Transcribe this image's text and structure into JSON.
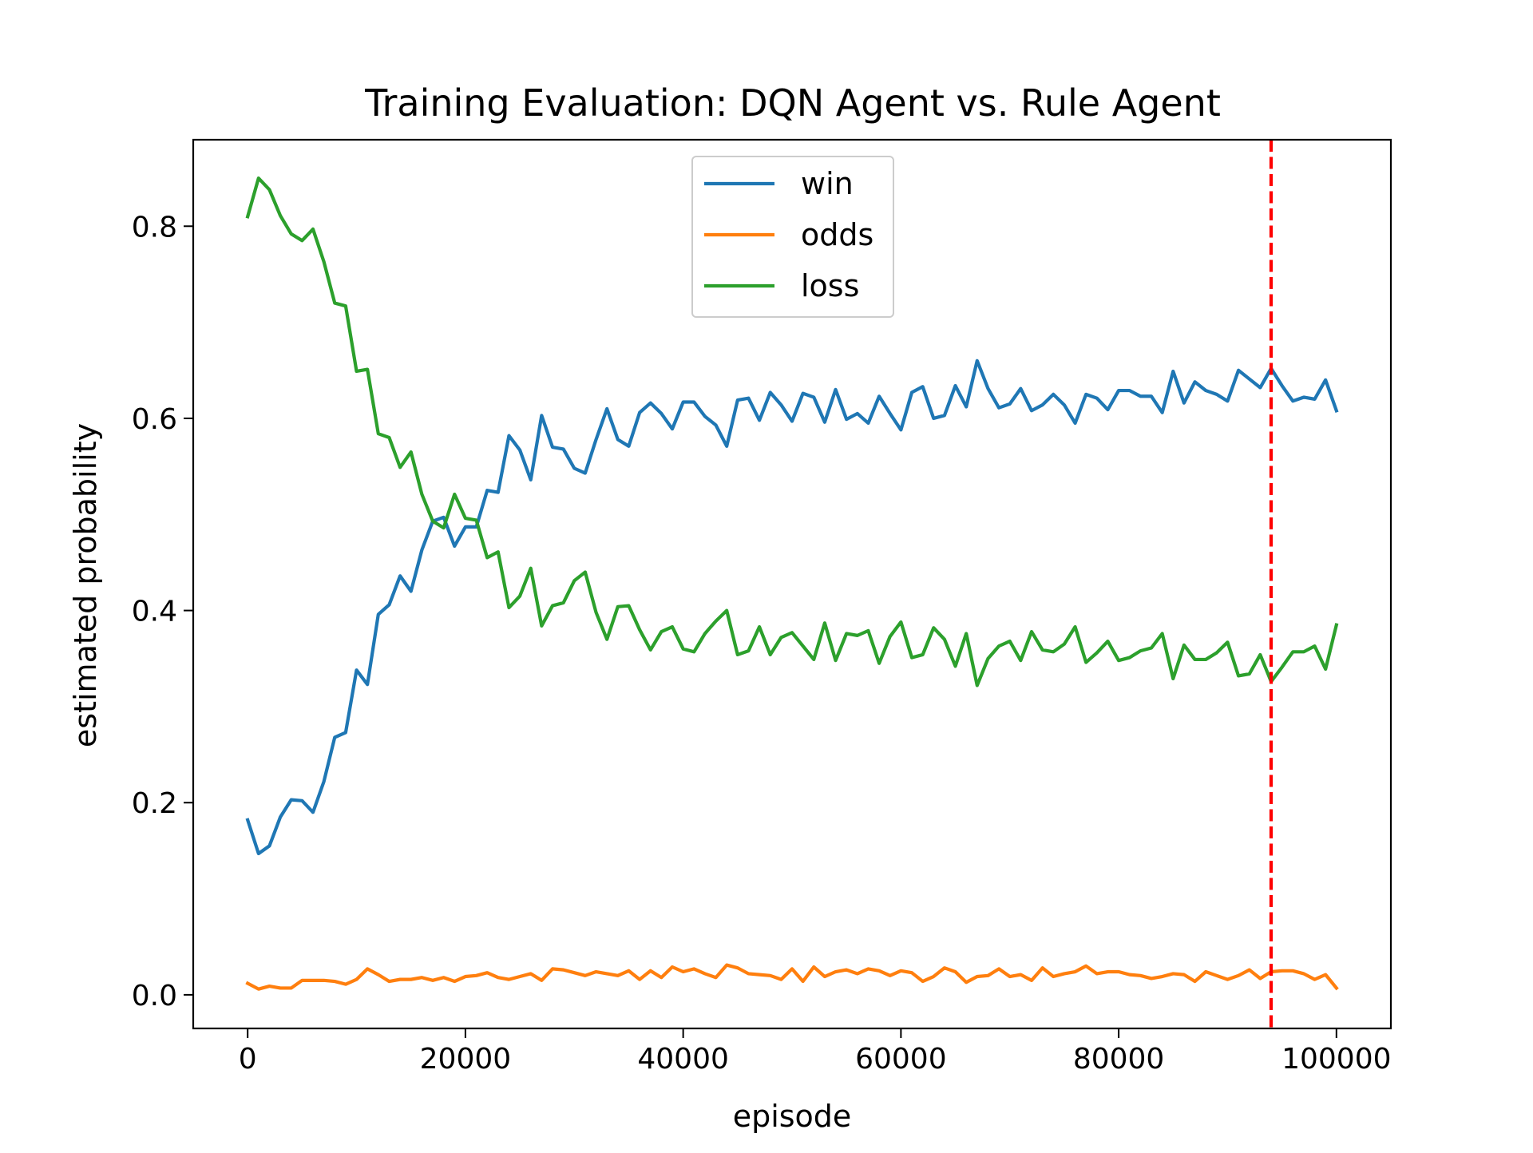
{
  "chart_data": {
    "type": "line",
    "title": "Training Evaluation: DQN Agent vs. Rule Agent",
    "xlabel": "episode",
    "ylabel": "estimated probability",
    "xlim": [
      -5000,
      105000
    ],
    "ylim": [
      -0.035,
      0.89
    ],
    "xticks": [
      0,
      20000,
      40000,
      60000,
      80000,
      100000
    ],
    "xtick_labels": [
      "0",
      "20000",
      "40000",
      "60000",
      "80000",
      "100000"
    ],
    "yticks": [
      0.0,
      0.2,
      0.4,
      0.6,
      0.8
    ],
    "ytick_labels": [
      "0.0",
      "0.2",
      "0.4",
      "0.6",
      "0.8"
    ],
    "grid": false,
    "legend_position": "upper-center",
    "x": [
      0,
      1000,
      2000,
      3000,
      4000,
      5000,
      6000,
      7000,
      8000,
      9000,
      10000,
      11000,
      12000,
      13000,
      14000,
      15000,
      16000,
      17000,
      18000,
      19000,
      20000,
      21000,
      22000,
      23000,
      24000,
      25000,
      26000,
      27000,
      28000,
      29000,
      30000,
      31000,
      32000,
      33000,
      34000,
      35000,
      36000,
      37000,
      38000,
      39000,
      40000,
      41000,
      42000,
      43000,
      44000,
      45000,
      46000,
      47000,
      48000,
      49000,
      50000,
      51000,
      52000,
      53000,
      54000,
      55000,
      56000,
      57000,
      58000,
      59000,
      60000,
      61000,
      62000,
      63000,
      64000,
      65000,
      66000,
      67000,
      68000,
      69000,
      70000,
      71000,
      72000,
      73000,
      74000,
      75000,
      76000,
      77000,
      78000,
      79000,
      80000,
      81000,
      82000,
      83000,
      84000,
      85000,
      86000,
      87000,
      88000,
      89000,
      90000,
      91000,
      92000,
      93000,
      94000,
      95000,
      96000,
      97000,
      98000,
      99000,
      100000
    ],
    "series": [
      {
        "name": "win",
        "color": "#1f77b4",
        "values": [
          0.182,
          0.147,
          0.155,
          0.185,
          0.203,
          0.202,
          0.19,
          0.222,
          0.268,
          0.273,
          0.338,
          0.323,
          0.396,
          0.406,
          0.436,
          0.42,
          0.463,
          0.493,
          0.497,
          0.467,
          0.487,
          0.487,
          0.525,
          0.523,
          0.582,
          0.567,
          0.536,
          0.603,
          0.57,
          0.568,
          0.548,
          0.543,
          0.578,
          0.61,
          0.578,
          0.571,
          0.606,
          0.616,
          0.605,
          0.589,
          0.617,
          0.617,
          0.602,
          0.593,
          0.571,
          0.619,
          0.621,
          0.598,
          0.627,
          0.614,
          0.597,
          0.626,
          0.622,
          0.596,
          0.63,
          0.599,
          0.605,
          0.595,
          0.623,
          0.605,
          0.588,
          0.627,
          0.633,
          0.6,
          0.603,
          0.634,
          0.612,
          0.66,
          0.631,
          0.611,
          0.615,
          0.631,
          0.608,
          0.614,
          0.625,
          0.614,
          0.595,
          0.625,
          0.621,
          0.609,
          0.629,
          0.629,
          0.623,
          0.623,
          0.606,
          0.649,
          0.616,
          0.638,
          0.629,
          0.625,
          0.618,
          0.65,
          0.641,
          0.632,
          0.652,
          0.634,
          0.618,
          0.622,
          0.62,
          0.64,
          0.608
        ]
      },
      {
        "name": "odds",
        "color": "#ff7f0e",
        "values": [
          0.012,
          0.006,
          0.009,
          0.007,
          0.007,
          0.015,
          0.015,
          0.015,
          0.014,
          0.011,
          0.016,
          0.027,
          0.021,
          0.014,
          0.016,
          0.016,
          0.018,
          0.015,
          0.018,
          0.014,
          0.019,
          0.02,
          0.023,
          0.018,
          0.016,
          0.019,
          0.022,
          0.015,
          0.027,
          0.026,
          0.023,
          0.02,
          0.024,
          0.022,
          0.02,
          0.025,
          0.016,
          0.025,
          0.018,
          0.029,
          0.024,
          0.027,
          0.022,
          0.018,
          0.031,
          0.028,
          0.022,
          0.021,
          0.02,
          0.016,
          0.027,
          0.014,
          0.029,
          0.019,
          0.024,
          0.026,
          0.022,
          0.027,
          0.025,
          0.02,
          0.025,
          0.023,
          0.014,
          0.019,
          0.028,
          0.024,
          0.013,
          0.019,
          0.02,
          0.027,
          0.019,
          0.021,
          0.015,
          0.028,
          0.019,
          0.022,
          0.024,
          0.03,
          0.022,
          0.024,
          0.024,
          0.021,
          0.02,
          0.017,
          0.019,
          0.022,
          0.021,
          0.014,
          0.024,
          0.02,
          0.016,
          0.02,
          0.026,
          0.017,
          0.024,
          0.025,
          0.025,
          0.022,
          0.016,
          0.021,
          0.007
        ]
      },
      {
        "name": "loss",
        "color": "#2ca02c",
        "values": [
          0.81,
          0.85,
          0.838,
          0.811,
          0.792,
          0.785,
          0.797,
          0.763,
          0.72,
          0.717,
          0.649,
          0.651,
          0.584,
          0.58,
          0.549,
          0.565,
          0.521,
          0.493,
          0.486,
          0.521,
          0.496,
          0.494,
          0.455,
          0.461,
          0.403,
          0.415,
          0.444,
          0.384,
          0.405,
          0.408,
          0.431,
          0.44,
          0.398,
          0.37,
          0.404,
          0.405,
          0.38,
          0.359,
          0.378,
          0.383,
          0.36,
          0.357,
          0.376,
          0.389,
          0.4,
          0.354,
          0.358,
          0.383,
          0.354,
          0.372,
          0.377,
          0.363,
          0.349,
          0.387,
          0.348,
          0.376,
          0.374,
          0.379,
          0.345,
          0.373,
          0.388,
          0.351,
          0.354,
          0.382,
          0.37,
          0.342,
          0.376,
          0.322,
          0.35,
          0.363,
          0.368,
          0.348,
          0.378,
          0.359,
          0.357,
          0.365,
          0.383,
          0.346,
          0.356,
          0.368,
          0.348,
          0.351,
          0.358,
          0.361,
          0.376,
          0.329,
          0.364,
          0.349,
          0.349,
          0.356,
          0.367,
          0.332,
          0.334,
          0.354,
          0.326,
          0.341,
          0.357,
          0.357,
          0.363,
          0.339,
          0.385
        ]
      }
    ],
    "vline": {
      "x": 94000,
      "color": "#ff0000",
      "style": "dashed"
    }
  }
}
